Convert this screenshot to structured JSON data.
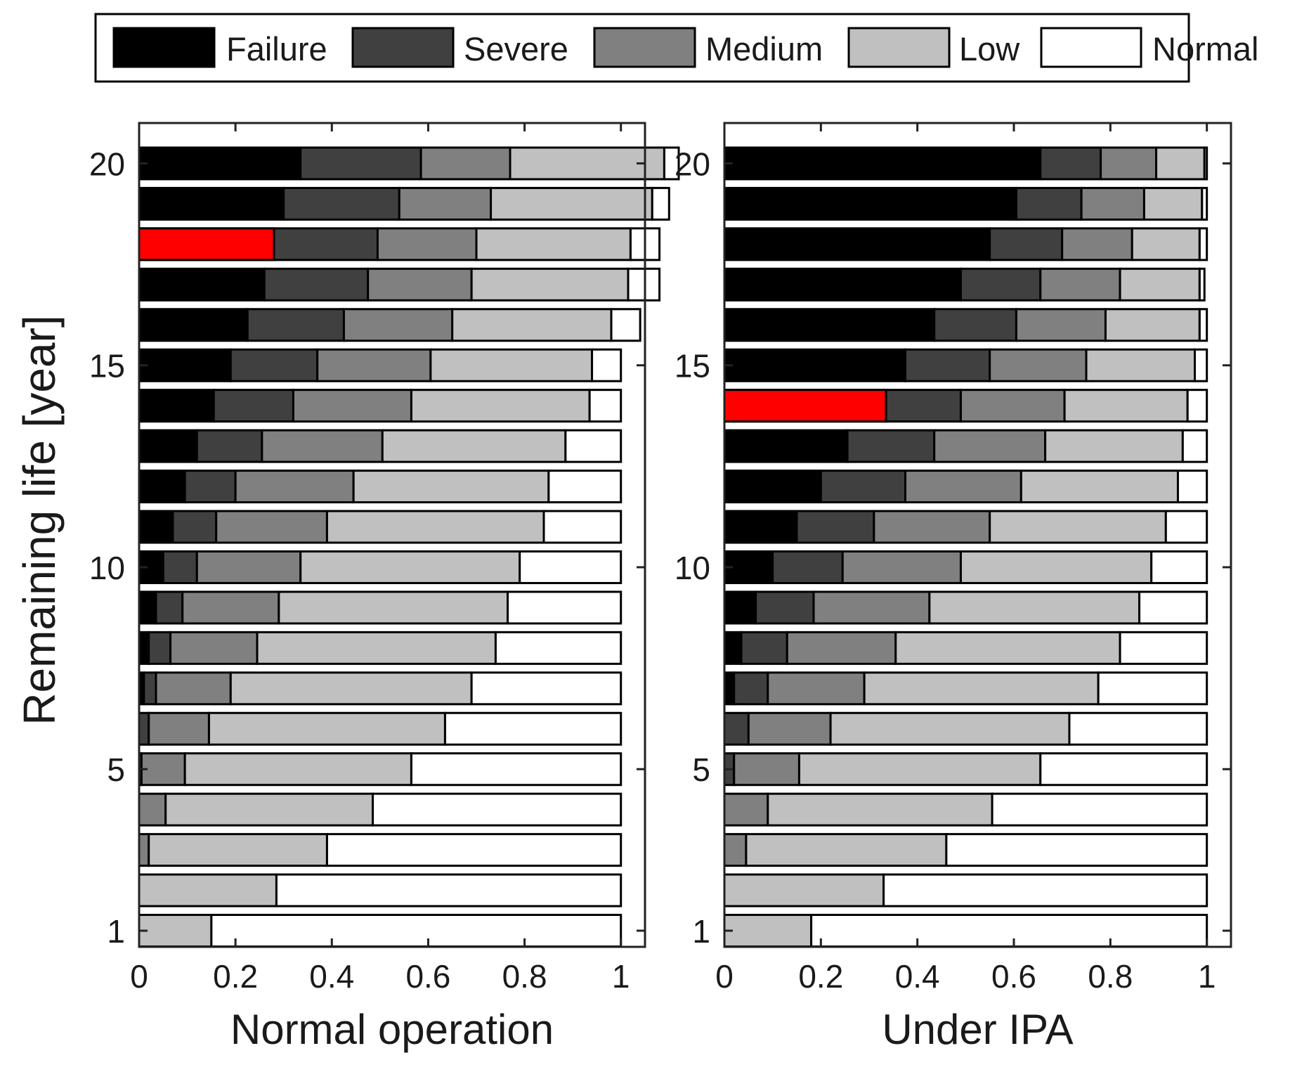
{
  "chart_data": {
    "type": "bar",
    "orientation": "horizontal",
    "stacked": true,
    "ylabel": "Remaining life [year]",
    "legend": {
      "placement": "top",
      "entries": [
        {
          "name": "Failure",
          "color": "#000000"
        },
        {
          "name": "Severe",
          "color": "#404040"
        },
        {
          "name": "Medium",
          "color": "#808080"
        },
        {
          "name": "Low",
          "color": "#c0c0c0"
        },
        {
          "name": "Normal",
          "color": "#ffffff"
        }
      ]
    },
    "highlight_color": "#ff0000",
    "categories": [
      1,
      2,
      3,
      4,
      5,
      6,
      7,
      8,
      9,
      10,
      11,
      12,
      13,
      14,
      15,
      16,
      17,
      18,
      19,
      20
    ],
    "ytick_labels": [
      "1",
      "5",
      "10",
      "15",
      "20"
    ],
    "ytick_values": [
      1,
      5,
      10,
      15,
      20
    ],
    "xtick_labels": [
      "0",
      "0.2",
      "0.4",
      "0.6",
      "0.8",
      "1"
    ],
    "xtick_values": [
      0,
      0.2,
      0.4,
      0.6,
      0.8,
      1
    ],
    "xlim": [
      0,
      1.05
    ],
    "ylim": [
      0.6,
      21
    ],
    "panels": [
      {
        "xlabel": "Normal operation",
        "highlight_year": 18,
        "highlight_value": 0.28,
        "series": [
          {
            "name": "Failure",
            "values": [
              0,
              0,
              0,
              0,
              0,
              0,
              0.01,
              0.02,
              0.035,
              0.05,
              0.07,
              0.095,
              0.12,
              0.155,
              0.19,
              0.225,
              0.26,
              0.28,
              0.3,
              0.335
            ]
          },
          {
            "name": "Severe",
            "values": [
              0,
              0,
              0,
              0,
              0.005,
              0.02,
              0.025,
              0.045,
              0.055,
              0.07,
              0.09,
              0.105,
              0.135,
              0.165,
              0.18,
              0.2,
              0.215,
              0.215,
              0.24,
              0.25
            ]
          },
          {
            "name": "Medium",
            "values": [
              0,
              0,
              0.02,
              0.055,
              0.09,
              0.125,
              0.155,
              0.18,
              0.2,
              0.215,
              0.23,
              0.245,
              0.25,
              0.245,
              0.235,
              0.225,
              0.215,
              0.205,
              0.19,
              0.185
            ]
          },
          {
            "name": "Low",
            "values": [
              0.15,
              0.285,
              0.37,
              0.43,
              0.47,
              0.49,
              0.5,
              0.495,
              0.475,
              0.455,
              0.45,
              0.405,
              0.38,
              0.37,
              0.335,
              0.33,
              0.325,
              0.32,
              0.335,
              0.32
            ]
          },
          {
            "name": "Normal",
            "values": [
              0.85,
              0.715,
              0.61,
              0.515,
              0.435,
              0.365,
              0.31,
              0.26,
              0.235,
              0.21,
              0.16,
              0.15,
              0.115,
              0.065,
              0.06,
              0.06,
              0.065,
              0.06,
              0.035,
              0.03
            ]
          }
        ]
      },
      {
        "xlabel": "Under IPA",
        "highlight_year": 14,
        "highlight_value": 0.335,
        "series": [
          {
            "name": "Failure",
            "values": [
              0,
              0,
              0,
              0,
              0,
              0,
              0.02,
              0.035,
              0.065,
              0.1,
              0.15,
              0.2,
              0.255,
              0.335,
              0.375,
              0.435,
              0.49,
              0.55,
              0.605,
              0.655
            ]
          },
          {
            "name": "Severe",
            "values": [
              0,
              0,
              0,
              0,
              0.02,
              0.05,
              0.07,
              0.095,
              0.12,
              0.145,
              0.16,
              0.175,
              0.18,
              0.155,
              0.175,
              0.17,
              0.165,
              0.15,
              0.135,
              0.125
            ]
          },
          {
            "name": "Medium",
            "values": [
              0,
              0,
              0.045,
              0.09,
              0.135,
              0.17,
              0.2,
              0.225,
              0.24,
              0.245,
              0.24,
              0.24,
              0.23,
              0.215,
              0.2,
              0.185,
              0.165,
              0.145,
              0.13,
              0.115
            ]
          },
          {
            "name": "Low",
            "values": [
              0.18,
              0.33,
              0.415,
              0.465,
              0.5,
              0.495,
              0.485,
              0.465,
              0.435,
              0.395,
              0.365,
              0.325,
              0.285,
              0.255,
              0.225,
              0.195,
              0.165,
              0.14,
              0.12,
              0.1
            ]
          },
          {
            "name": "Normal",
            "values": [
              0.82,
              0.67,
              0.54,
              0.445,
              0.345,
              0.285,
              0.225,
              0.18,
              0.14,
              0.115,
              0.085,
              0.06,
              0.05,
              0.04,
              0.025,
              0.015,
              0.01,
              0.015,
              0.01,
              0.005
            ]
          }
        ]
      }
    ]
  }
}
